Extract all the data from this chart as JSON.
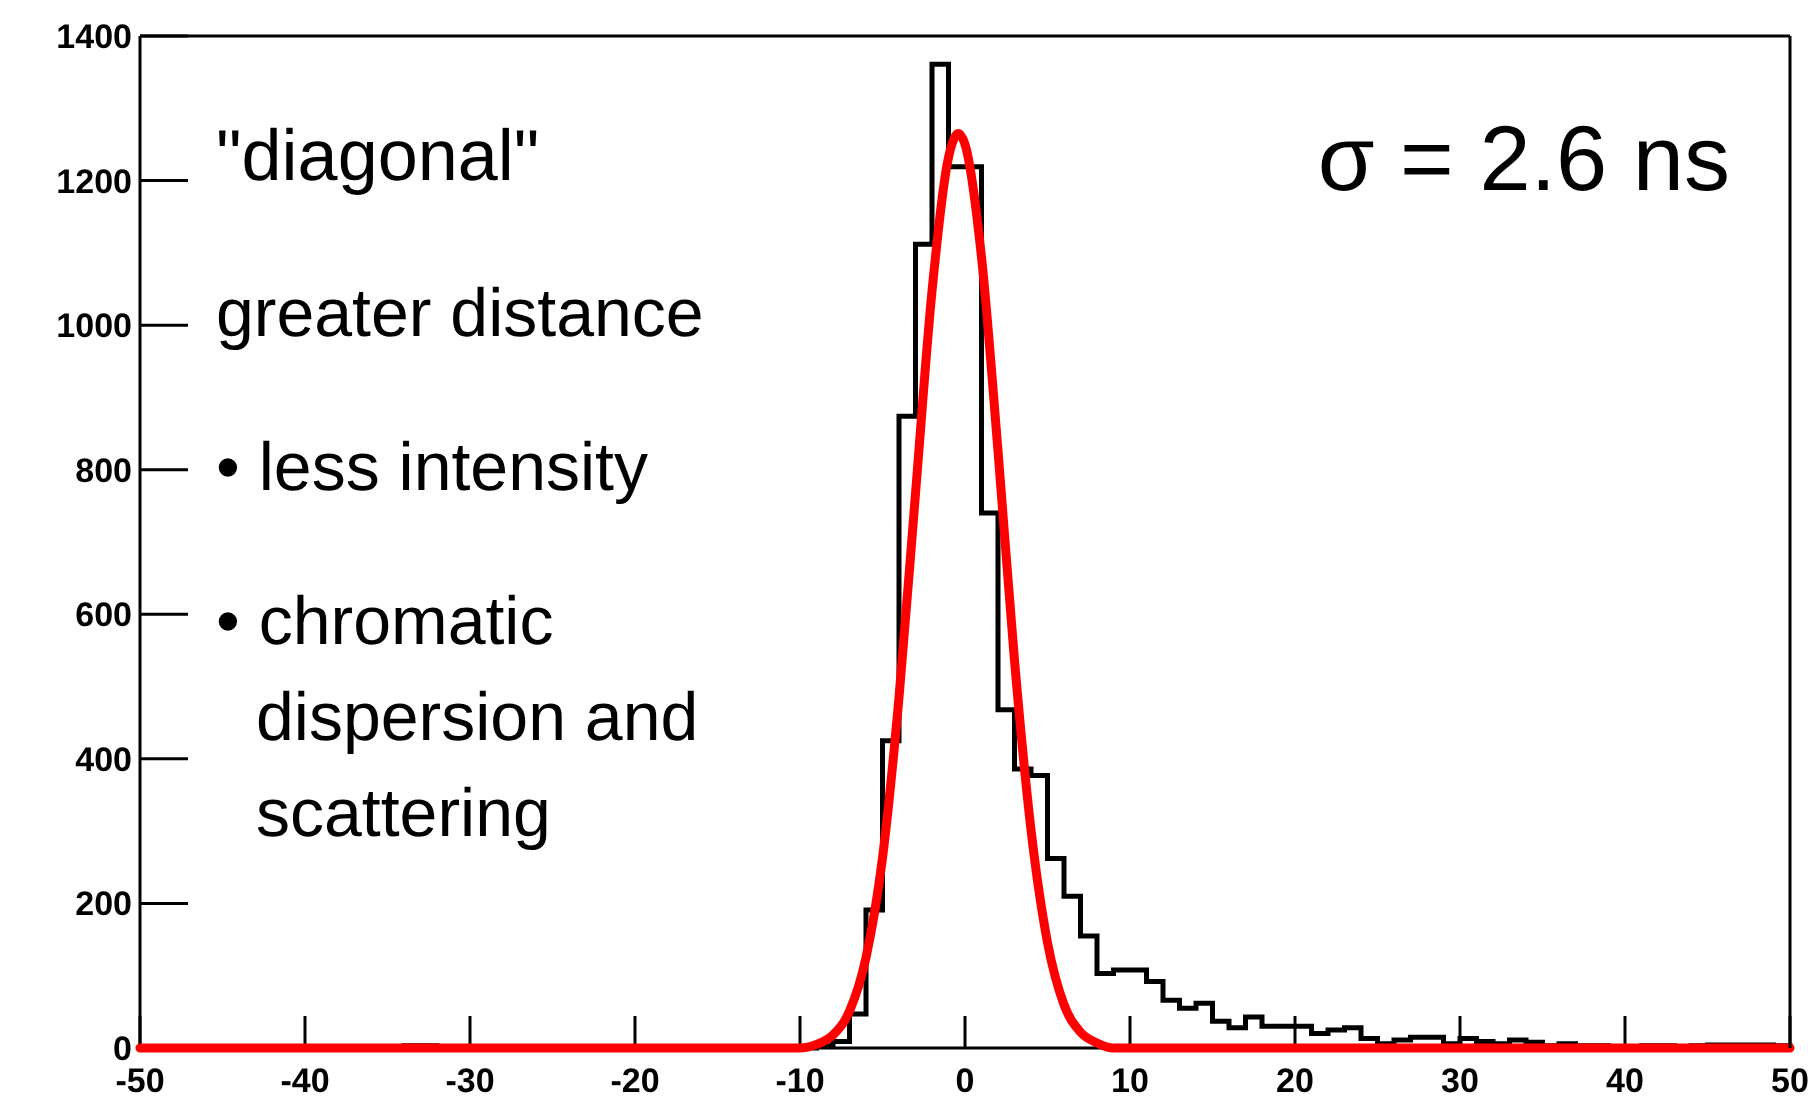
{
  "chart_data": {
    "type": "histogram",
    "bins": [
      -50,
      -49,
      -48,
      -47,
      -46,
      -45,
      -44,
      -43,
      -42,
      -41,
      -40,
      -39,
      -38,
      -37,
      -36,
      -35,
      -34,
      -33,
      -32,
      -31,
      -30,
      -29,
      -28,
      -27,
      -26,
      -25,
      -24,
      -23,
      -22,
      -21,
      -20,
      -19,
      -18,
      -17,
      -16,
      -15,
      -14,
      -13,
      -12,
      -11,
      -10,
      -9,
      -8,
      -7,
      -6,
      -5,
      -4,
      -3,
      -2,
      -1,
      0,
      1,
      2,
      3,
      4,
      5,
      6,
      7,
      8,
      9,
      10,
      11,
      12,
      13,
      14,
      15,
      16,
      17,
      18,
      19,
      20,
      21,
      22,
      23,
      24,
      25,
      26,
      27,
      28,
      29,
      30,
      31,
      32,
      33,
      34,
      35,
      36,
      37,
      38,
      39,
      40,
      41,
      42,
      43,
      44,
      45,
      46,
      47,
      48,
      49,
      50
    ],
    "series": [
      {
        "color": "#000000",
        "values": [
          0,
          0,
          0,
          0,
          0,
          0,
          0,
          0,
          0,
          0,
          0,
          0,
          0,
          0,
          0,
          0,
          3,
          3,
          0,
          0,
          0,
          0,
          0,
          0,
          0,
          0,
          0,
          0,
          0,
          0,
          0,
          0,
          0,
          0,
          0,
          0,
          0,
          0,
          0,
          0,
          0,
          3,
          9,
          47,
          191,
          425,
          874,
          1112,
          1361,
          1219,
          1219,
          740,
          468,
          386,
          377,
          262,
          210,
          155,
          103,
          108,
          108,
          92,
          66,
          55,
          62,
          37,
          28,
          43,
          30,
          30,
          30,
          20,
          25,
          28,
          13,
          6,
          11,
          15,
          15,
          6,
          13,
          9,
          6,
          11,
          8,
          3,
          6,
          3,
          3,
          2,
          2,
          3,
          3,
          2,
          3,
          4,
          4,
          4,
          4,
          3
        ]
      },
      {
        "type": "line",
        "color": "#ff0000",
        "x": [
          -50,
          -10,
          -9,
          -8,
          -7,
          -6,
          -5,
          -4,
          -3,
          -2,
          -1,
          -0.4,
          0,
          1,
          2,
          3,
          4,
          5,
          6,
          7,
          8,
          9,
          50
        ],
        "values": [
          0,
          0,
          5,
          18,
          51,
          125,
          263,
          485,
          767,
          1047,
          1232,
          1265,
          1250,
          1094,
          826,
          536,
          302,
          146,
          60,
          22,
          7,
          0,
          0
        ]
      }
    ],
    "xlim": [
      -50,
      50
    ],
    "xticks": [
      -50,
      -40,
      -30,
      -20,
      -10,
      0,
      10,
      20,
      30,
      40,
      50
    ],
    "ylim": [
      0,
      1400
    ],
    "yticks": [
      0,
      200,
      400,
      600,
      800,
      1000,
      1200,
      1400
    ],
    "line_style": "solid",
    "annotations": [
      "\"diagonal\"",
      "greater distance",
      "• less intensity",
      "• chromatic dispersion and scattering",
      "σ = 2.6 ns"
    ]
  }
}
